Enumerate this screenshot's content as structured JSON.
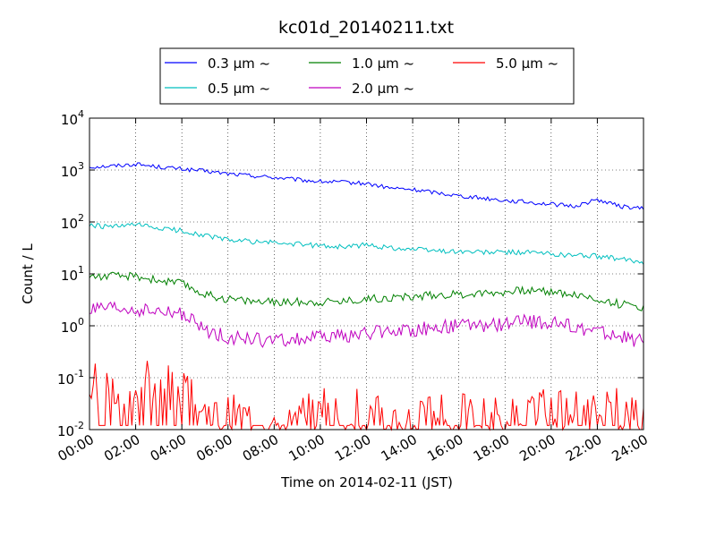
{
  "chart_data": {
    "type": "line",
    "title": "kc01d_20140211.txt",
    "xlabel": "Time on 2014-02-11 (JST)",
    "ylabel": "Count / L",
    "y_scale": "log",
    "ylim": [
      0.01,
      10000
    ],
    "xlim": [
      "00:00",
      "24:00"
    ],
    "grid": true,
    "legend_position": "top-center",
    "x_ticks": [
      "00:00",
      "02:00",
      "04:00",
      "06:00",
      "08:00",
      "10:00",
      "12:00",
      "14:00",
      "16:00",
      "18:00",
      "20:00",
      "22:00",
      "24:00"
    ],
    "y_ticks": [
      {
        "base": "10",
        "exp": "-2"
      },
      {
        "base": "10",
        "exp": "-1"
      },
      {
        "base": "10",
        "exp": "0"
      },
      {
        "base": "10",
        "exp": "1"
      },
      {
        "base": "10",
        "exp": "2"
      },
      {
        "base": "10",
        "exp": "3"
      },
      {
        "base": "10",
        "exp": "4"
      }
    ],
    "x_hours": [
      0,
      1,
      2,
      3,
      4,
      5,
      6,
      7,
      8,
      9,
      10,
      11,
      12,
      13,
      14,
      15,
      16,
      17,
      18,
      19,
      20,
      21,
      22,
      23,
      24
    ],
    "series": [
      {
        "name": "0.3 μm ~",
        "color": "#0000ff",
        "values": [
          1150,
          1200,
          1300,
          1150,
          1050,
          950,
          850,
          780,
          720,
          650,
          600,
          580,
          550,
          450,
          420,
          370,
          320,
          290,
          260,
          240,
          220,
          200,
          270,
          200,
          180
        ]
      },
      {
        "name": "0.5 μm ~",
        "color": "#00bfbf",
        "values": [
          85,
          80,
          88,
          75,
          68,
          55,
          45,
          42,
          40,
          37,
          35,
          33,
          36,
          32,
          30,
          28,
          27,
          26,
          26,
          26,
          24,
          23,
          22,
          19,
          17
        ]
      },
      {
        "name": "1.0 μm ~",
        "color": "#008000",
        "values": [
          9,
          9,
          9,
          7.5,
          6.5,
          4,
          3.3,
          3,
          2.8,
          2.9,
          2.9,
          3,
          3.3,
          3.5,
          3.6,
          4,
          4,
          4.3,
          4.5,
          4.8,
          4.6,
          4,
          3.2,
          2.6,
          2.3
        ]
      },
      {
        "name": "2.0 μm ~",
        "color": "#bf00bf",
        "values": [
          2,
          2.1,
          2,
          1.8,
          1.7,
          0.8,
          0.6,
          0.55,
          0.5,
          0.55,
          0.6,
          0.65,
          0.7,
          0.8,
          0.85,
          0.9,
          1,
          1,
          1.1,
          1.2,
          1.1,
          0.95,
          0.8,
          0.6,
          0.5
        ]
      },
      {
        "name": "5.0 μm ~",
        "color": "#ff0000",
        "values": [
          0.09,
          0.07,
          0.08,
          0.06,
          0.05,
          0.025,
          0.02,
          0.018,
          0.017,
          0.015,
          0.02,
          0.02,
          0.02,
          0.018,
          0.016,
          0.016,
          0.02,
          0.02,
          0.018,
          0.02,
          0.02,
          0.02,
          0.02,
          0.022,
          0.02
        ]
      }
    ]
  }
}
